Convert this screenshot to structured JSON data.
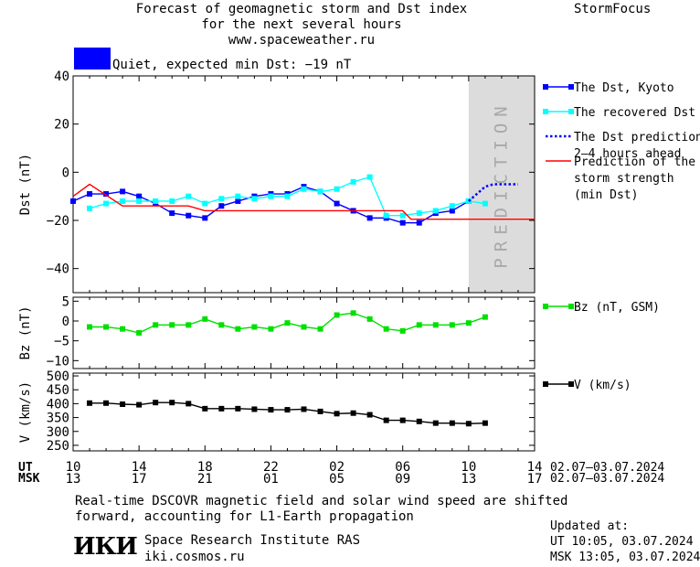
{
  "header": {
    "title_line1": "Forecast of geomagnetic storm and Dst index",
    "title_line2": "for the next several hours",
    "title_line3": "www.spaceweather.ru",
    "brand": "StormFocus"
  },
  "status": {
    "color": "#0000ff",
    "text": "Quiet, expected min Dst: −19 nT"
  },
  "prediction_label": "PREDICTION",
  "time_axis": {
    "ut_label": "UT",
    "msk_label": "MSK",
    "ut_ticks": [
      "10",
      "14",
      "18",
      "22",
      "02",
      "06",
      "10",
      "14"
    ],
    "msk_ticks": [
      "13",
      "17",
      "21",
      "01",
      "05",
      "09",
      "13",
      "17"
    ],
    "date_range_ut": "02.07–03.07.2024",
    "date_range_msk": "02.07–03.07.2024"
  },
  "footer": {
    "note_line1": "Real-time DSCOVR magnetic field and solar wind speed are shifted",
    "note_line2": "forward, accounting for L1-Earth propagation",
    "logo_text": "ИКИ",
    "institute": "Space Research Institute RAS",
    "site": "iki.cosmos.ru",
    "updated_label": "Updated at:",
    "updated_ut": "UT   10:05, 03.07.2024",
    "updated_msk": "MSK 13:05, 03.07.2024"
  },
  "chart_data": [
    {
      "type": "line",
      "ylabel": "Dst (nT)",
      "ylim": [
        -50,
        40
      ],
      "yticks": [
        40,
        20,
        0,
        -20,
        -40
      ],
      "xlim": [
        0,
        28
      ],
      "prediction_region": [
        24,
        28
      ],
      "series": [
        {
          "name": "The Dst, Kyoto",
          "color": "#0000ff",
          "marker": "square",
          "x": [
            0,
            1,
            2,
            3,
            4,
            5,
            6,
            7,
            8,
            9,
            10,
            11,
            12,
            13,
            14,
            15,
            16,
            17,
            18,
            19,
            20,
            21,
            22,
            23,
            24
          ],
          "y": [
            -12,
            -9,
            -9,
            -8,
            -10,
            -13,
            -17,
            -18,
            -19,
            -14,
            -12,
            -10,
            -9,
            -9,
            -6,
            -8,
            -13,
            -16,
            -19,
            -19,
            -21,
            -21,
            -17,
            -16,
            -12
          ]
        },
        {
          "name": "The recovered Dst",
          "color": "#00ffff",
          "marker": "square",
          "x": [
            1,
            2,
            3,
            4,
            5,
            6,
            7,
            8,
            9,
            10,
            11,
            12,
            13,
            14,
            15,
            16,
            17,
            18,
            19,
            20,
            21,
            22,
            23,
            24,
            25
          ],
          "y": [
            -15,
            -13,
            -12,
            -12,
            -12,
            -12,
            -10,
            -13,
            -11,
            -10,
            -11,
            -10,
            -10,
            -7,
            -8,
            -7,
            -4,
            -2,
            -18,
            -18,
            -17,
            -16,
            -14,
            -12,
            -13
          ]
        },
        {
          "name": "The Dst prediction 2–4 hours ahead",
          "color": "#0000ff",
          "style": "dotted",
          "x": [
            24,
            24.5,
            25,
            25.5,
            26,
            27
          ],
          "y": [
            -12,
            -9,
            -6,
            -5,
            -5,
            -5
          ]
        },
        {
          "name": "Prediction of the storm strength (min Dst)",
          "color": "#ff0000",
          "style": "solid",
          "x": [
            0,
            1,
            3,
            7,
            8,
            20,
            20.5,
            28
          ],
          "y": [
            -10,
            -5,
            -14,
            -14,
            -16,
            -16,
            -19.5,
            -19.5
          ]
        }
      ],
      "legend": [
        {
          "label": "The Dst, Kyoto",
          "color": "#0000ff",
          "style": "marker"
        },
        {
          "label": "The recovered Dst",
          "color": "#00ffff",
          "style": "marker"
        },
        {
          "label": "The Dst prediction",
          "label2": "2–4 hours ahead",
          "color": "#0000ff",
          "style": "dotted"
        },
        {
          "label": "Prediction of the",
          "label2": "storm strength",
          "label3": "(min Dst)",
          "color": "#ff0000",
          "style": "solid"
        }
      ]
    },
    {
      "type": "line",
      "ylabel": "Bz (nT)",
      "ylim": [
        -12,
        6
      ],
      "yticks": [
        5,
        0,
        -5,
        -10
      ],
      "series": [
        {
          "name": "Bz (nT, GSM)",
          "color": "#00e000",
          "marker": "square",
          "x": [
            1,
            2,
            3,
            4,
            5,
            6,
            7,
            8,
            9,
            10,
            11,
            12,
            13,
            14,
            15,
            16,
            17,
            18,
            19,
            20,
            21,
            22,
            23,
            24,
            25
          ],
          "y": [
            -1.5,
            -1.5,
            -2,
            -3,
            -1,
            -1,
            -1,
            0.5,
            -1,
            -2,
            -1.5,
            -2,
            -0.5,
            -1.5,
            -2,
            1.5,
            2,
            0.5,
            -2,
            -2.5,
            -1,
            -1,
            -1,
            -0.5,
            1
          ]
        }
      ],
      "legend": [
        {
          "label": "Bz (nT, GSM)",
          "color": "#00e000",
          "style": "marker"
        }
      ]
    },
    {
      "type": "line",
      "ylabel": "V (km/s)",
      "ylim": [
        230,
        510
      ],
      "yticks": [
        500,
        450,
        400,
        350,
        300,
        250
      ],
      "series": [
        {
          "name": "V (km/s)",
          "color": "#000000",
          "marker": "square",
          "x": [
            1,
            2,
            3,
            4,
            5,
            6,
            7,
            8,
            9,
            10,
            11,
            12,
            13,
            14,
            15,
            16,
            17,
            18,
            19,
            20,
            21,
            22,
            23,
            24,
            25
          ],
          "y": [
            402,
            402,
            398,
            396,
            404,
            404,
            400,
            382,
            382,
            382,
            380,
            378,
            378,
            380,
            372,
            364,
            366,
            360,
            340,
            340,
            336,
            330,
            330,
            328,
            330
          ]
        }
      ],
      "legend": [
        {
          "label": "V (km/s)",
          "color": "#000000",
          "style": "marker"
        }
      ]
    }
  ]
}
